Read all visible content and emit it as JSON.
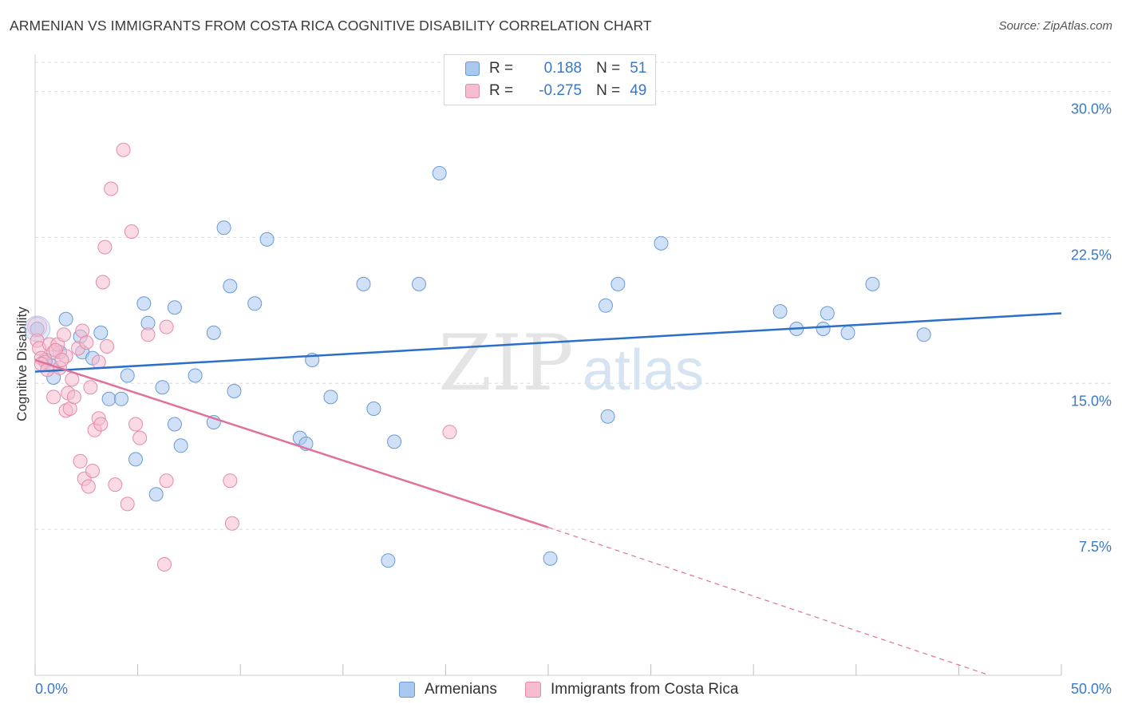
{
  "title": "ARMENIAN VS IMMIGRANTS FROM COSTA RICA COGNITIVE DISABILITY CORRELATION CHART",
  "source": "Source: ZipAtlas.com",
  "watermark": {
    "zip": "ZIP",
    "atlas": "atlas"
  },
  "legend": {
    "rows": [
      {
        "r_label": "R =",
        "r_value": "0.188",
        "n_label": "N =",
        "n_value": "51",
        "color": "#a9c8f0",
        "stroke": "#6a9ad6"
      },
      {
        "r_label": "R =",
        "r_value": "-0.275",
        "n_label": "N =",
        "n_value": "49",
        "color": "#f6bcd0",
        "stroke": "#e58aa8"
      }
    ]
  },
  "chart_data": {
    "type": "scatter",
    "title": "ARMENIAN VS IMMIGRANTS FROM COSTA RICA COGNITIVE DISABILITY CORRELATION CHART",
    "xlabel": "",
    "ylabel": "Cognitive Disability",
    "xlim": [
      0,
      50
    ],
    "ylim": [
      0,
      31.5
    ],
    "x_tick_labels": [
      "0.0%",
      "50.0%"
    ],
    "y_ticks": [
      7.5,
      15.0,
      22.5,
      30.0
    ],
    "y_tick_labels": [
      "7.5%",
      "15.0%",
      "22.5%",
      "30.0%"
    ],
    "grid": "horizontal dashed",
    "legend_position": "bottom",
    "series": [
      {
        "name": "Armenians",
        "color": "#a9c8f0",
        "stroke": "#6a9ad6",
        "line_color": "#2a6fc9",
        "trend": {
          "x": [
            0,
            50
          ],
          "y": [
            15.6,
            18.6
          ]
        },
        "points": [
          [
            0.1,
            17.8
          ],
          [
            0.5,
            16.2
          ],
          [
            0.8,
            15.9
          ],
          [
            0.9,
            15.3
          ],
          [
            1.2,
            16.6
          ],
          [
            1.5,
            18.3
          ],
          [
            2.2,
            17.4
          ],
          [
            2.3,
            16.6
          ],
          [
            2.8,
            16.3
          ],
          [
            3.2,
            17.6
          ],
          [
            3.6,
            14.2
          ],
          [
            4.2,
            14.2
          ],
          [
            4.5,
            15.4
          ],
          [
            4.9,
            11.1
          ],
          [
            5.3,
            19.1
          ],
          [
            5.5,
            18.1
          ],
          [
            5.9,
            9.3
          ],
          [
            6.2,
            14.8
          ],
          [
            6.8,
            12.9
          ],
          [
            6.8,
            18.9
          ],
          [
            7.1,
            11.8
          ],
          [
            7.8,
            15.4
          ],
          [
            8.7,
            17.6
          ],
          [
            8.7,
            13.0
          ],
          [
            9.2,
            23.0
          ],
          [
            9.5,
            20.0
          ],
          [
            9.7,
            14.6
          ],
          [
            10.7,
            19.1
          ],
          [
            11.3,
            22.4
          ],
          [
            12.9,
            12.2
          ],
          [
            13.2,
            11.9
          ],
          [
            13.5,
            16.2
          ],
          [
            14.4,
            14.3
          ],
          [
            16.0,
            20.1
          ],
          [
            16.5,
            13.7
          ],
          [
            17.2,
            5.9
          ],
          [
            17.5,
            12.0
          ],
          [
            18.7,
            20.1
          ],
          [
            19.7,
            25.8
          ],
          [
            25.1,
            6.0
          ],
          [
            27.8,
            19.0
          ],
          [
            27.9,
            13.3
          ],
          [
            28.4,
            20.1
          ],
          [
            30.5,
            22.2
          ],
          [
            36.3,
            18.7
          ],
          [
            37.1,
            17.8
          ],
          [
            38.4,
            17.8
          ],
          [
            38.6,
            18.6
          ],
          [
            39.6,
            17.6
          ],
          [
            40.8,
            20.1
          ],
          [
            43.3,
            17.5
          ]
        ]
      },
      {
        "name": "Immigrants from Costa Rica",
        "color": "#f6bcd0",
        "stroke": "#e58aa8",
        "line_color": "#e0719a",
        "trend": {
          "x": [
            0,
            25
          ],
          "y": [
            16.2,
            7.6
          ]
        },
        "trend_extension": {
          "x": [
            25,
            46.5
          ],
          "y": [
            7.6,
            0
          ]
        },
        "points": [
          [
            0.1,
            17.2
          ],
          [
            0.2,
            16.8
          ],
          [
            0.3,
            16.3
          ],
          [
            0.5,
            16.1
          ],
          [
            0.7,
            17.0
          ],
          [
            0.9,
            16.6
          ],
          [
            0.9,
            14.3
          ],
          [
            1.1,
            17.0
          ],
          [
            1.2,
            15.8
          ],
          [
            1.4,
            17.5
          ],
          [
            1.5,
            16.4
          ],
          [
            1.5,
            13.6
          ],
          [
            1.6,
            14.5
          ],
          [
            1.7,
            13.7
          ],
          [
            1.8,
            15.2
          ],
          [
            1.9,
            14.3
          ],
          [
            2.1,
            16.8
          ],
          [
            2.2,
            11.0
          ],
          [
            2.3,
            17.7
          ],
          [
            2.4,
            10.1
          ],
          [
            2.5,
            17.1
          ],
          [
            2.6,
            9.7
          ],
          [
            2.7,
            14.8
          ],
          [
            2.8,
            10.5
          ],
          [
            2.9,
            12.6
          ],
          [
            3.1,
            13.2
          ],
          [
            3.1,
            16.1
          ],
          [
            3.2,
            12.9
          ],
          [
            3.3,
            20.2
          ],
          [
            3.4,
            22.0
          ],
          [
            3.5,
            16.9
          ],
          [
            3.7,
            25.0
          ],
          [
            3.9,
            9.8
          ],
          [
            4.3,
            27.0
          ],
          [
            4.5,
            8.8
          ],
          [
            4.7,
            22.8
          ],
          [
            4.9,
            12.9
          ],
          [
            5.1,
            12.2
          ],
          [
            5.5,
            17.5
          ],
          [
            6.3,
            5.7
          ],
          [
            6.4,
            17.9
          ],
          [
            6.4,
            10.0
          ],
          [
            9.5,
            10.0
          ],
          [
            9.6,
            7.8
          ],
          [
            20.2,
            12.5
          ],
          [
            0.3,
            16.0
          ],
          [
            0.6,
            15.7
          ],
          [
            1.0,
            16.7
          ],
          [
            1.3,
            16.2
          ]
        ]
      }
    ]
  }
}
